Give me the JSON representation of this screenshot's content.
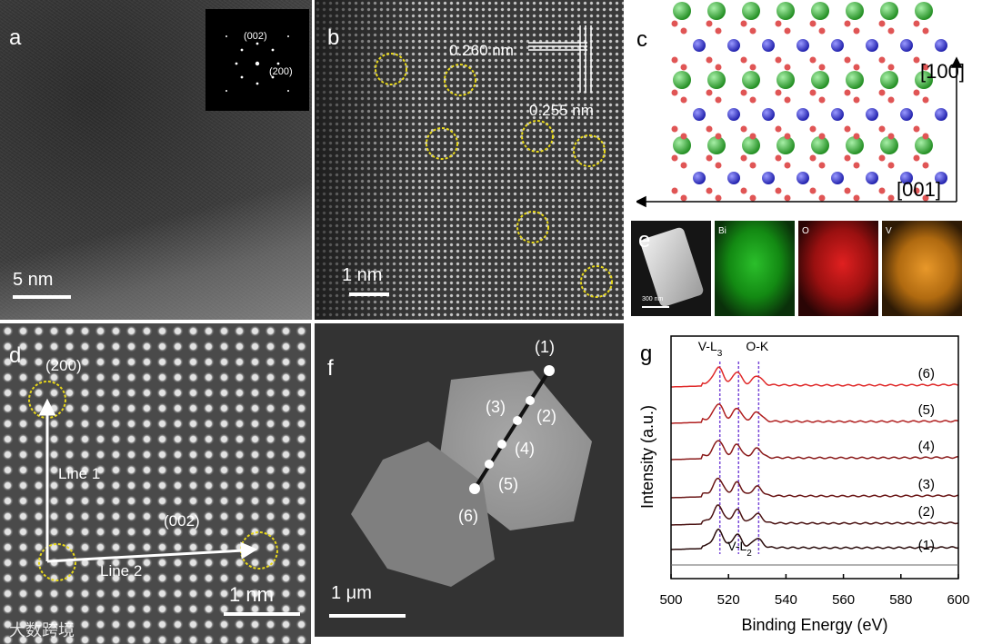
{
  "panel_labels": {
    "a": "a",
    "b": "b",
    "c": "c",
    "d": "d",
    "e": "e",
    "f": "f",
    "g": "g"
  },
  "panel_a": {
    "scale_bar": "5 nm",
    "fft_labels": [
      "(002)",
      "(200)"
    ]
  },
  "panel_b": {
    "scale_bar": "1 nm",
    "d_spacing_1": "0.260 nm",
    "d_spacing_2": "0.255 nm"
  },
  "panel_c": {
    "direction_vertical": "[100]",
    "direction_horizontal": "[001]",
    "colors": {
      "Bi": "#2fa52f",
      "V": "#2a2acc",
      "O": "#e05555"
    }
  },
  "panel_d": {
    "scale_bar": "1 nm",
    "line1": "Line 1",
    "line2": "Line 2",
    "plane_200": "(200)",
    "plane_002": "(002)"
  },
  "panel_e": {
    "scale_bar": "300 nm",
    "maps": [
      "Bi",
      "O",
      "V"
    ],
    "colors": {
      "Bi": "#1fa51f",
      "O": "#cc1a1a",
      "V": "#d88a18"
    }
  },
  "panel_f": {
    "scale_bar": "1 μm",
    "points": [
      "(1)",
      "(2)",
      "(3)",
      "(4)",
      "(5)",
      "(6)"
    ]
  },
  "chart_data": {
    "type": "line",
    "xlabel": "Binding Energy (eV)",
    "ylabel": "Intensity (a.u.)",
    "xlim": [
      500,
      600
    ],
    "x_ticks": [
      500,
      520,
      540,
      560,
      580,
      600
    ],
    "peak_labels": [
      "V-L3",
      "O-K",
      "V-L2"
    ],
    "peak_positions": [
      517,
      523.5,
      530.5
    ],
    "series": [
      {
        "name": "(1)",
        "color": "#2a0c0c"
      },
      {
        "name": "(2)",
        "color": "#4a1212"
      },
      {
        "name": "(3)",
        "color": "#6a1616"
      },
      {
        "name": "(4)",
        "color": "#8a1a1a"
      },
      {
        "name": "(5)",
        "color": "#b01f1f"
      },
      {
        "name": "(6)",
        "color": "#e02a2a"
      }
    ]
  },
  "watermark": "大数跨境"
}
